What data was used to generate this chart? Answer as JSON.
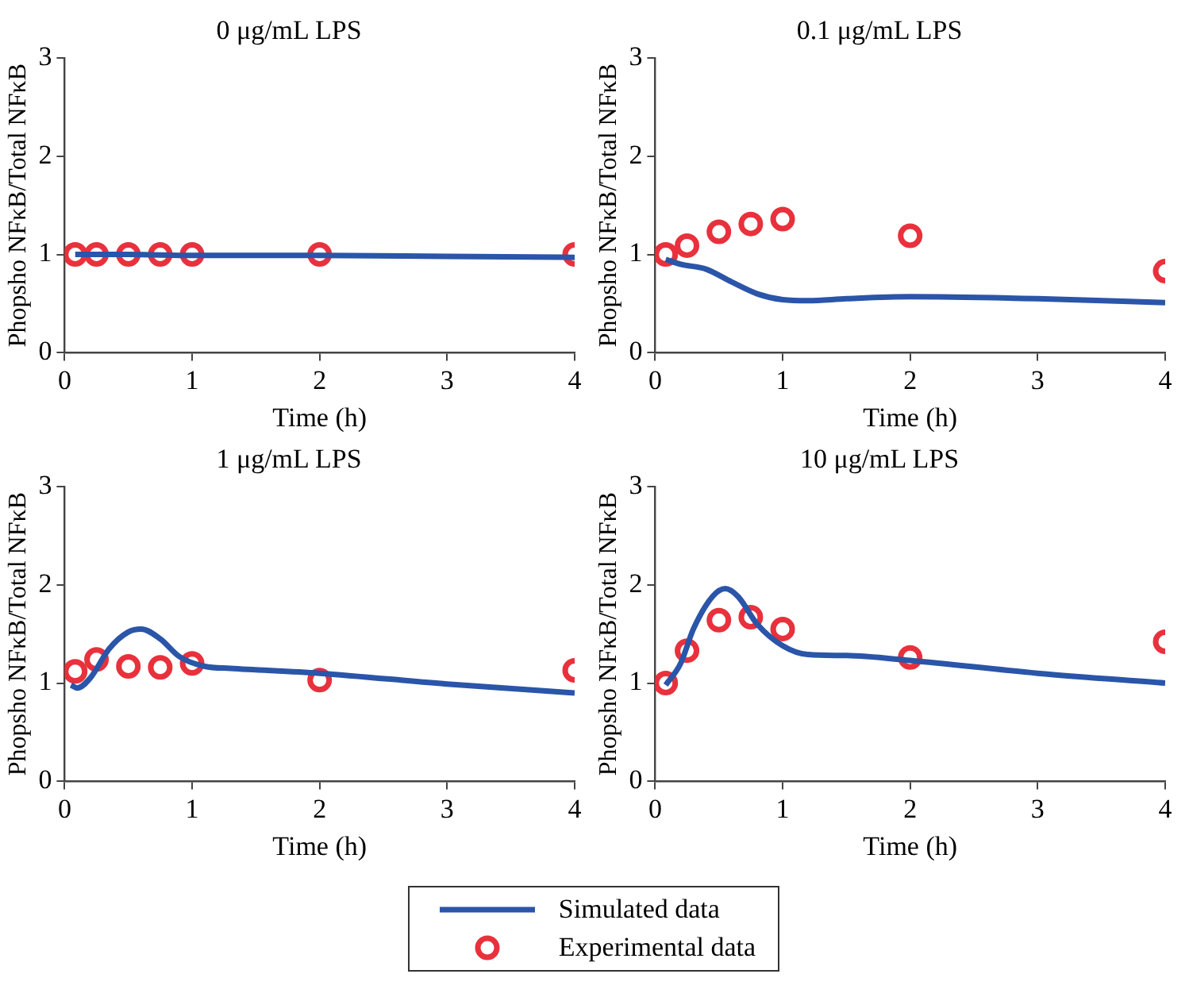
{
  "chart_data": [
    {
      "type": "line",
      "title": "0 μg/mL LPS",
      "xlabel": "Time (h)",
      "ylabel": "Phopsho NFκB/Total NFκB",
      "xlim": [
        0,
        4
      ],
      "xticks": [
        0,
        1,
        2,
        3,
        4
      ],
      "ylim": [
        0,
        3
      ],
      "yticks": [
        0,
        1,
        2,
        3
      ],
      "grid": false,
      "legend": false,
      "series": [
        {
          "type": "line",
          "color": "#2a55a8",
          "marker": "none",
          "x": [
            0.083,
            0.5,
            1,
            2,
            3,
            4
          ],
          "values": [
            1.0,
            1.0,
            0.99,
            0.99,
            0.98,
            0.97
          ]
        },
        {
          "type": "scatter",
          "color": "#e8313c",
          "marker": "circle",
          "x": [
            0.083,
            0.25,
            0.5,
            0.75,
            1,
            2,
            4
          ],
          "values": [
            1.0,
            1.0,
            1.0,
            1.0,
            1.0,
            1.0,
            1.0
          ]
        }
      ]
    },
    {
      "type": "line",
      "title": "0.1 μg/mL LPS",
      "xlabel": "Time (h)",
      "ylabel": "Phopsho NFκB/Total NFκB",
      "xlim": [
        0,
        4
      ],
      "xticks": [
        0,
        1,
        2,
        3,
        4
      ],
      "ylim": [
        0,
        3
      ],
      "yticks": [
        0,
        1,
        2,
        3
      ],
      "grid": false,
      "legend": false,
      "series": [
        {
          "type": "line",
          "color": "#2a55a8",
          "marker": "none",
          "x": [
            0.083,
            0.2,
            0.4,
            0.6,
            0.8,
            1.0,
            1.2,
            1.5,
            2,
            3,
            4
          ],
          "values": [
            0.95,
            0.9,
            0.85,
            0.72,
            0.6,
            0.54,
            0.53,
            0.55,
            0.57,
            0.55,
            0.51
          ]
        },
        {
          "type": "scatter",
          "color": "#e8313c",
          "marker": "circle",
          "x": [
            0.083,
            0.25,
            0.5,
            0.75,
            1,
            2,
            4
          ],
          "values": [
            1.0,
            1.09,
            1.23,
            1.31,
            1.36,
            1.19,
            0.83
          ]
        }
      ]
    },
    {
      "type": "line",
      "title": "1 μg/mL LPS",
      "xlabel": "Time (h)",
      "ylabel": "Phopsho NFκB/Total NFκB",
      "xlim": [
        0,
        4
      ],
      "xticks": [
        0,
        1,
        2,
        3,
        4
      ],
      "ylim": [
        0,
        3
      ],
      "yticks": [
        0,
        1,
        2,
        3
      ],
      "grid": false,
      "legend": false,
      "series": [
        {
          "type": "line",
          "color": "#2a55a8",
          "marker": "none",
          "x": [
            0.05,
            0.1,
            0.2,
            0.35,
            0.5,
            0.6,
            0.75,
            0.9,
            1.1,
            1.3,
            2,
            3,
            4
          ],
          "values": [
            0.98,
            0.95,
            1.05,
            1.35,
            1.52,
            1.55,
            1.45,
            1.27,
            1.17,
            1.15,
            1.1,
            0.99,
            0.9
          ]
        },
        {
          "type": "scatter",
          "color": "#e8313c",
          "marker": "circle",
          "x": [
            0.083,
            0.25,
            0.5,
            0.75,
            1,
            2,
            4
          ],
          "values": [
            1.12,
            1.24,
            1.17,
            1.16,
            1.2,
            1.03,
            1.13
          ]
        }
      ]
    },
    {
      "type": "line",
      "title": "10 μg/mL LPS",
      "xlabel": "Time (h)",
      "ylabel": "Phopsho NFκB/Total NFκB",
      "xlim": [
        0,
        4
      ],
      "xticks": [
        0,
        1,
        2,
        3,
        4
      ],
      "ylim": [
        0,
        3
      ],
      "yticks": [
        0,
        1,
        2,
        3
      ],
      "grid": false,
      "legend": "bottom",
      "series": [
        {
          "name": "Simulated data",
          "type": "line",
          "color": "#2a55a8",
          "marker": "none",
          "x": [
            0.083,
            0.2,
            0.3,
            0.45,
            0.55,
            0.65,
            0.8,
            1.0,
            1.2,
            1.5,
            2,
            3,
            4
          ],
          "values": [
            0.98,
            1.2,
            1.55,
            1.88,
            1.96,
            1.88,
            1.6,
            1.38,
            1.29,
            1.28,
            1.23,
            1.1,
            1.0
          ]
        },
        {
          "name": "Experimental data",
          "type": "scatter",
          "color": "#e8313c",
          "marker": "circle",
          "x": [
            0.083,
            0.25,
            0.5,
            0.75,
            1,
            2,
            4
          ],
          "values": [
            1.0,
            1.33,
            1.64,
            1.67,
            1.55,
            1.26,
            1.42
          ]
        }
      ]
    }
  ]
}
